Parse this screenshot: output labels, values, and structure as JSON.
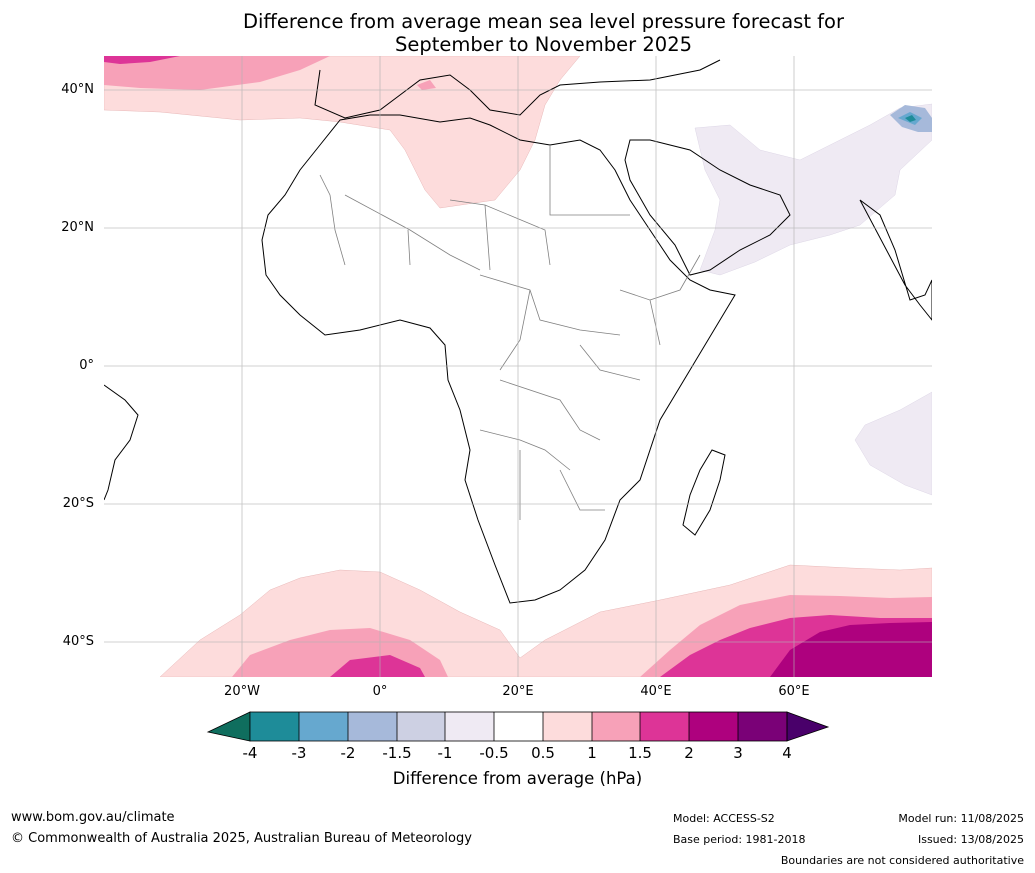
{
  "title": {
    "line1": "Difference from average mean sea level pressure forecast for",
    "line2": "September to November 2025"
  },
  "axes": {
    "lat_labels": [
      "40°N",
      "20°N",
      "0°",
      "20°S",
      "40°S"
    ],
    "lon_labels": [
      "20°W",
      "0°",
      "20°E",
      "40°E",
      "60°E"
    ]
  },
  "colorbar": {
    "label": "Difference from average (hPa)",
    "ticks": [
      "-4",
      "-3",
      "-2",
      "-1.5",
      "-1",
      "-0.5",
      "0.5",
      "1",
      "1.5",
      "2",
      "3",
      "4"
    ],
    "colors": [
      "#0f6e5e",
      "#1e8c99",
      "#66a8cf",
      "#a6b9da",
      "#cdd0e3",
      "#efeaf3",
      "#ffffff",
      "#fddcdc",
      "#f7a1b8",
      "#dd3497",
      "#ae017e",
      "#7a0177",
      "#49006a"
    ]
  },
  "footer": {
    "url": "www.bom.gov.au/climate",
    "copyright": "© Commonwealth of Australia 2025, Australian Bureau of Meteorology",
    "model": "Model: ACCESS-S2",
    "base_period": "Base period: 1981-2018",
    "model_run": "Model run: 11/08/2025",
    "issued": "Issued: 13/08/2025",
    "disclaimer": "Boundaries are not considered authoritative"
  }
}
